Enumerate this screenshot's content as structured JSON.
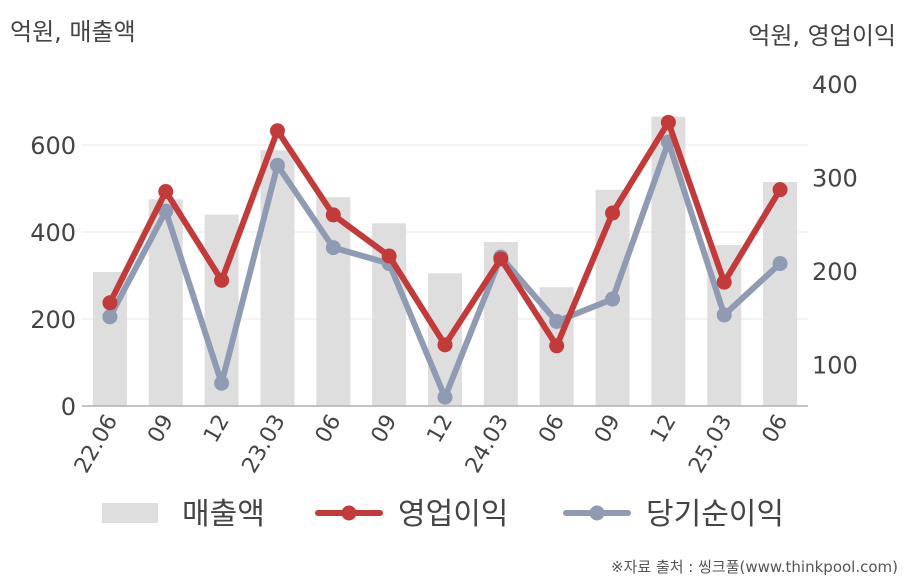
{
  "unit_left": "억원, 매출액",
  "unit_right": "억원, 영업이익",
  "source": "※자료 출처 : 씽크풀(www.thinkpool.com)",
  "chart_data": {
    "type": "bar+line",
    "categories": [
      "22.06",
      "09",
      "12",
      "23.03",
      "06",
      "09",
      "12",
      "24.03",
      "06",
      "09",
      "12",
      "25.03",
      "06"
    ],
    "left_axis": {
      "label": "억원, 매출액",
      "ylim": [
        0,
        700
      ],
      "ticks": [
        0,
        200,
        400,
        600
      ]
    },
    "right_axis": {
      "label": "억원, 영업이익",
      "ylim": [
        55,
        400
      ],
      "ticks": [
        100,
        200,
        300,
        400
      ]
    },
    "grid": true,
    "legend_position": "bottom",
    "series": [
      {
        "name": "매출액",
        "type": "bar",
        "axis": "left",
        "color": "#dedede",
        "values": [
          308,
          475,
          440,
          588,
          480,
          420,
          305,
          377,
          273,
          497,
          665,
          370,
          515
        ]
      },
      {
        "name": "영업이익",
        "type": "line",
        "axis": "right",
        "color": "#c23b3a",
        "values": [
          166,
          285,
          190,
          350,
          260,
          216,
          121,
          213,
          120,
          262,
          359,
          188,
          287
        ]
      },
      {
        "name": "당기순이익",
        "type": "line",
        "axis": "right",
        "color": "#8f9ab3",
        "values": [
          151,
          264,
          80,
          313,
          225,
          208,
          65,
          215,
          146,
          170,
          338,
          153,
          208
        ]
      }
    ]
  }
}
